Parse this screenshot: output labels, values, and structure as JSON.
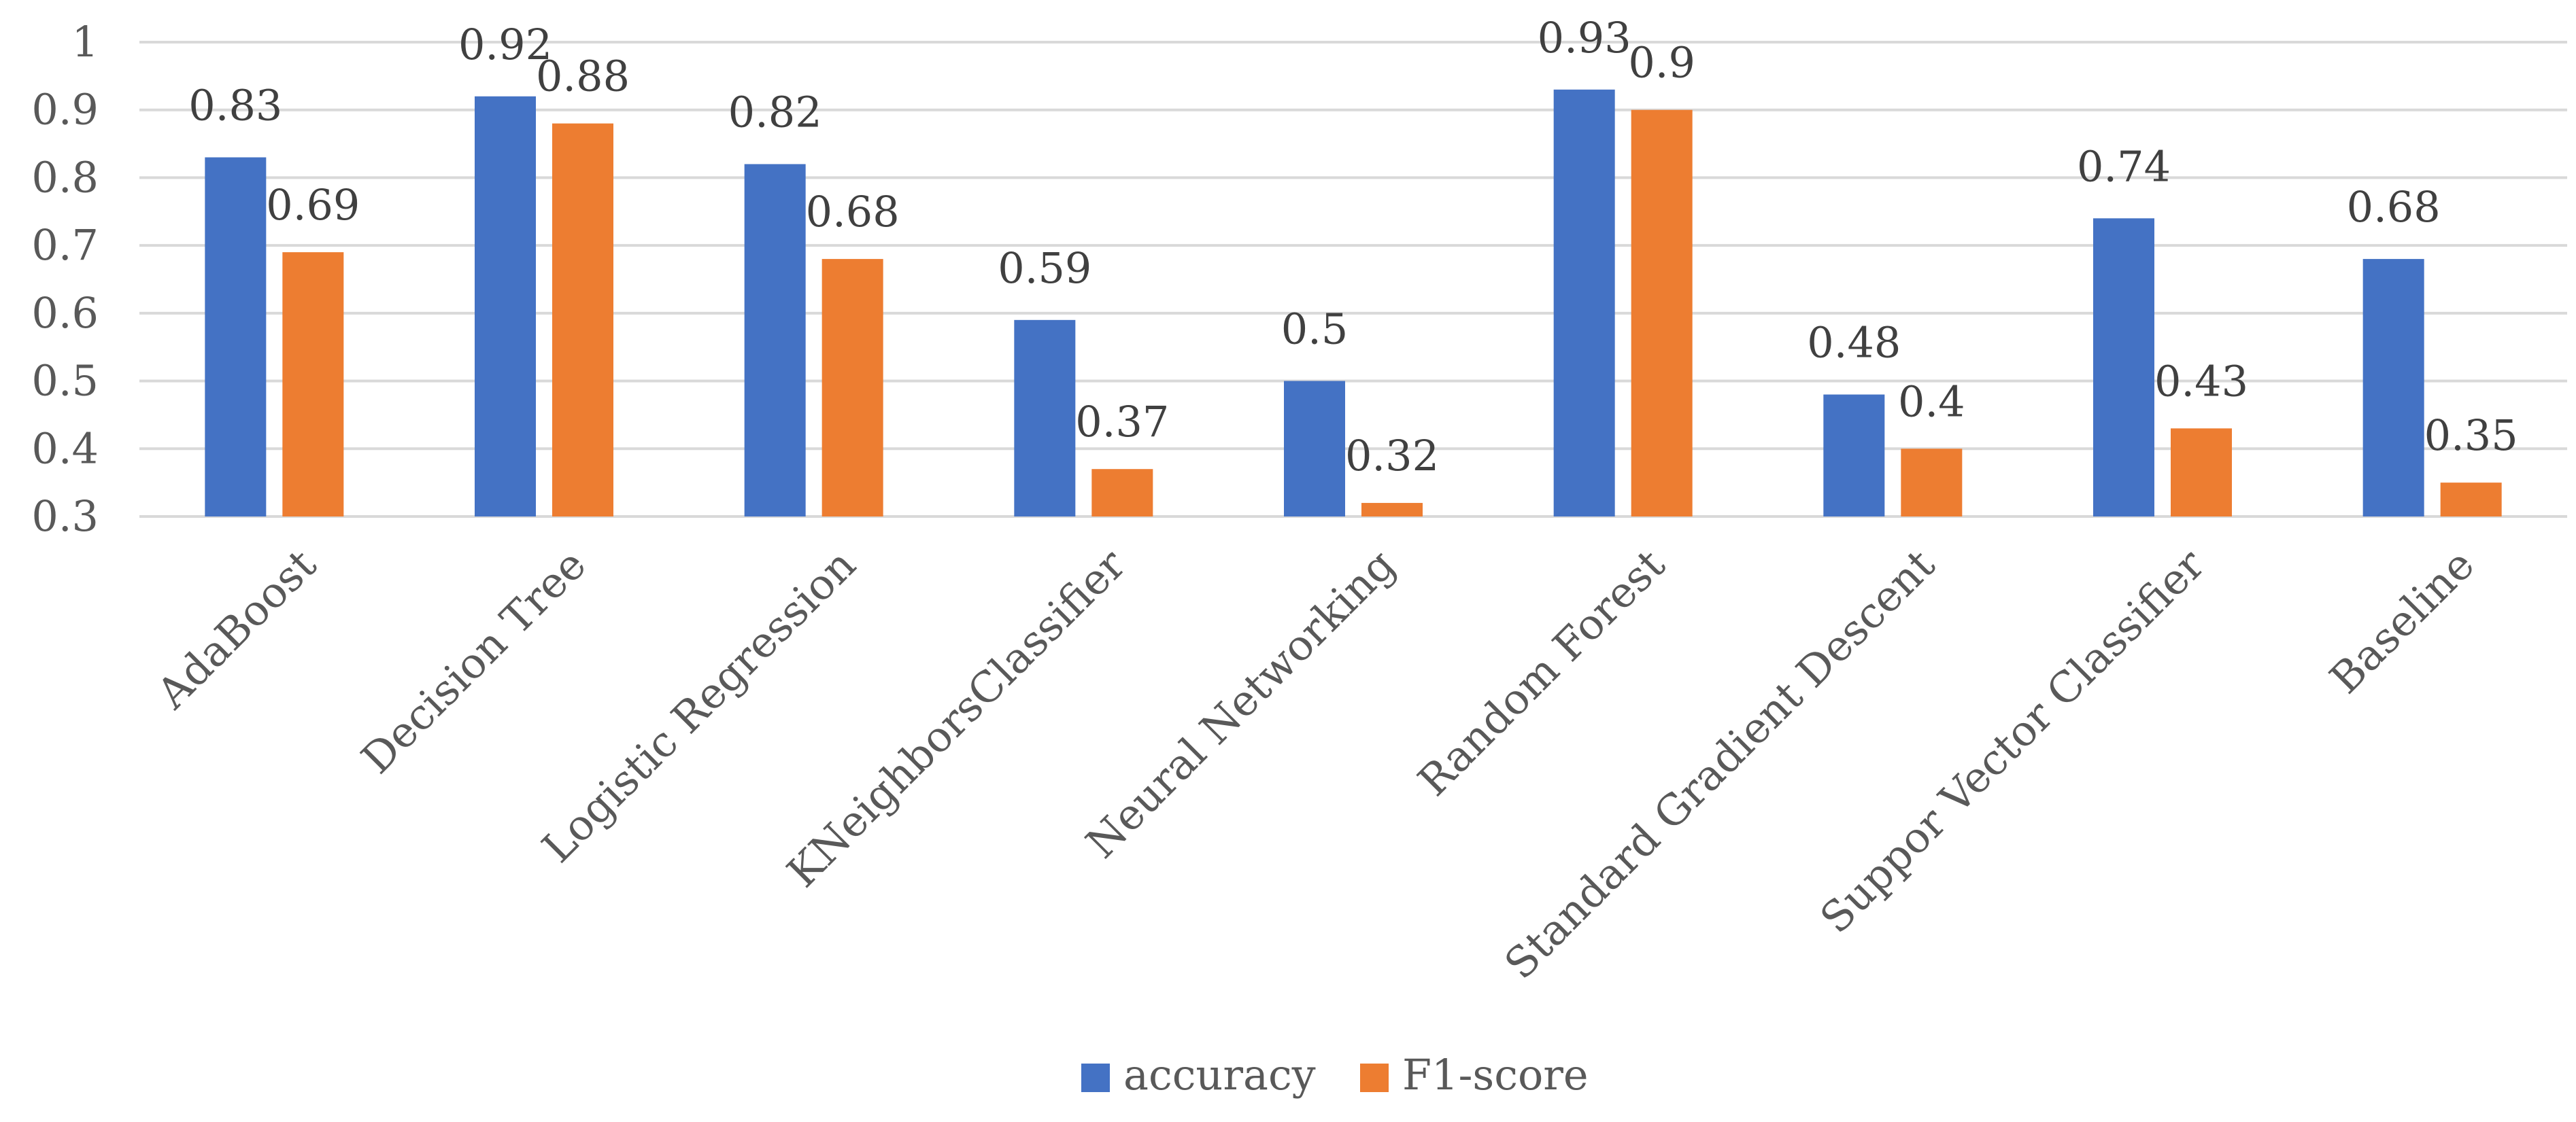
{
  "chart_data": {
    "type": "bar",
    "title": "",
    "xlabel": "",
    "ylabel": "",
    "ylim": [
      0.3,
      1
    ],
    "yticks": [
      0.3,
      0.4,
      0.5,
      0.6,
      0.7,
      0.8,
      0.9,
      1
    ],
    "ytick_labels": [
      "0.3",
      "0.4",
      "0.5",
      "0.6",
      "0.7",
      "0.8",
      "0.9",
      "1"
    ],
    "grid": true,
    "legend_position": "bottom",
    "categories": [
      "AdaBoost",
      "Decision Tree",
      "Logistic Regression",
      "KNeighborsClassifier",
      "Neural Networking",
      "Random Forest",
      "Standard Gradient Descent",
      "Suppor Vector Classifier",
      "Baseline"
    ],
    "series": [
      {
        "name": "accuracy",
        "color": "#4472c4",
        "values": [
          0.83,
          0.92,
          0.82,
          0.59,
          0.5,
          0.93,
          0.48,
          0.74,
          0.68
        ],
        "labels": [
          "0.83",
          "0.92",
          "0.82",
          "0.59",
          "0.5",
          "0.93",
          "0.48",
          "0.74",
          "0.68"
        ]
      },
      {
        "name": "F1-score",
        "color": "#ed7d31",
        "values": [
          0.69,
          0.88,
          0.68,
          0.37,
          0.32,
          0.9,
          0.4,
          0.43,
          0.35
        ],
        "labels": [
          "0.69",
          "0.88",
          "0.68",
          "0.37",
          "0.32",
          "0.9",
          "0.4",
          "0.43",
          "0.35"
        ]
      }
    ]
  }
}
